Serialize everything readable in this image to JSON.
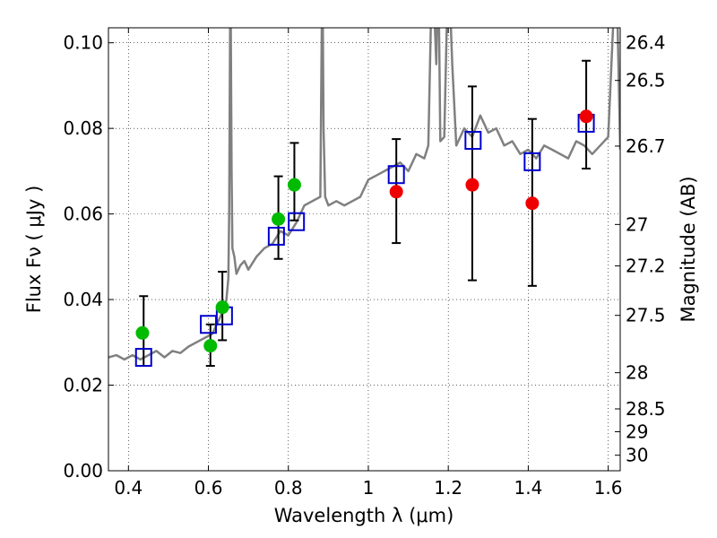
{
  "chart_data": {
    "type": "scatter",
    "title": "",
    "xlabel": "Wavelength  λ (μm)",
    "ylabel": "Flux  Fν  ( μJy )",
    "y2label": "Magnitude (AB)",
    "xlim": [
      0.35,
      1.63
    ],
    "ylim": [
      0.0,
      0.1035
    ],
    "grid": true,
    "x_ticks": [
      "0.4",
      "0.6",
      "0.8",
      "1",
      "1.2",
      "1.4",
      "1.6"
    ],
    "y_ticks": [
      "0.00",
      "0.02",
      "0.04",
      "0.06",
      "0.08",
      "0.10"
    ],
    "mag_ticks": [
      {
        "label": "26.4",
        "mag": 26.4
      },
      {
        "label": "26.5",
        "mag": 26.5
      },
      {
        "label": "26.7",
        "mag": 26.7
      },
      {
        "label": "27",
        "mag": 27.0
      },
      {
        "label": "27.2",
        "mag": 27.2
      },
      {
        "label": "27.5",
        "mag": 27.5
      },
      {
        "label": "28",
        "mag": 28.0
      },
      {
        "label": "28.5",
        "mag": 28.5
      },
      {
        "label": "29",
        "mag": 29.0
      },
      {
        "label": "30",
        "mag": 30.0
      }
    ],
    "colors": {
      "model": "#808080",
      "green_points": "#00bb00",
      "red_points": "#ee0000",
      "squares": "#0000cc",
      "errorbars": "#000000"
    },
    "series": [
      {
        "kind": "line",
        "x": [
          0.35,
          0.37,
          0.39,
          0.41,
          0.43,
          0.45,
          0.47,
          0.49,
          0.51,
          0.53,
          0.55,
          0.57,
          0.59,
          0.61,
          0.62,
          0.63,
          0.64,
          0.645,
          0.65,
          0.652,
          0.655,
          0.658,
          0.66,
          0.665,
          0.67,
          0.68,
          0.69,
          0.7,
          0.72,
          0.74,
          0.76,
          0.78,
          0.8,
          0.82,
          0.84,
          0.86,
          0.88,
          0.885,
          0.888,
          0.892,
          0.9,
          0.92,
          0.94,
          0.96,
          0.98,
          1.0,
          1.02,
          1.04,
          1.06,
          1.08,
          1.1,
          1.12,
          1.14,
          1.15,
          1.16,
          1.17,
          1.175,
          1.18,
          1.19,
          1.2,
          1.21,
          1.22,
          1.24,
          1.26,
          1.28,
          1.3,
          1.32,
          1.34,
          1.36,
          1.38,
          1.4,
          1.42,
          1.44,
          1.46,
          1.48,
          1.5,
          1.52,
          1.54,
          1.56,
          1.58,
          1.6,
          1.62,
          1.63
        ],
        "y": [
          0.0265,
          0.027,
          0.026,
          0.027,
          0.026,
          0.027,
          0.028,
          0.0265,
          0.028,
          0.0275,
          0.029,
          0.03,
          0.031,
          0.032,
          0.034,
          0.036,
          0.038,
          0.04,
          0.045,
          0.06,
          0.12,
          0.07,
          0.052,
          0.05,
          0.046,
          0.048,
          0.049,
          0.047,
          0.05,
          0.052,
          0.053,
          0.056,
          0.055,
          0.058,
          0.062,
          0.063,
          0.064,
          0.12,
          0.08,
          0.064,
          0.062,
          0.063,
          0.062,
          0.063,
          0.064,
          0.068,
          0.069,
          0.07,
          0.071,
          0.072,
          0.07,
          0.074,
          0.073,
          0.076,
          0.12,
          0.095,
          0.12,
          0.077,
          0.078,
          0.12,
          0.095,
          0.076,
          0.08,
          0.078,
          0.083,
          0.079,
          0.08,
          0.076,
          0.077,
          0.074,
          0.075,
          0.073,
          0.076,
          0.075,
          0.074,
          0.073,
          0.077,
          0.076,
          0.074,
          0.076,
          0.078,
          0.12,
          0.075
        ]
      },
      {
        "kind": "circles",
        "color": "green",
        "x": [
          0.435,
          0.605,
          0.635,
          0.775,
          0.815
        ],
        "y": [
          0.0322,
          0.0292,
          0.0382,
          0.0588,
          0.0668
        ]
      },
      {
        "kind": "circles",
        "color": "red",
        "x": [
          1.07,
          1.26,
          1.41,
          1.545
        ],
        "y": [
          0.0652,
          0.0668,
          0.0625,
          0.0828
        ]
      },
      {
        "kind": "squares",
        "x": [
          0.438,
          0.6,
          0.64,
          0.77,
          0.82,
          1.07,
          1.262,
          1.41,
          1.545
        ],
        "y": [
          0.0265,
          0.0342,
          0.0362,
          0.0548,
          0.0582,
          0.0692,
          0.0772,
          0.0722,
          0.0812
        ]
      },
      {
        "kind": "errorbars",
        "x": [
          0.438,
          0.605,
          0.635,
          0.775,
          0.815,
          1.07,
          1.26,
          1.41,
          1.545
        ],
        "ylow": [
          0.0245,
          0.0245,
          0.0305,
          0.0495,
          0.0585,
          0.0532,
          0.0445,
          0.0432,
          0.0706
        ],
        "yhigh": [
          0.0408,
          0.0342,
          0.0465,
          0.0688,
          0.0766,
          0.0775,
          0.0898,
          0.0822,
          0.0958
        ]
      }
    ]
  }
}
